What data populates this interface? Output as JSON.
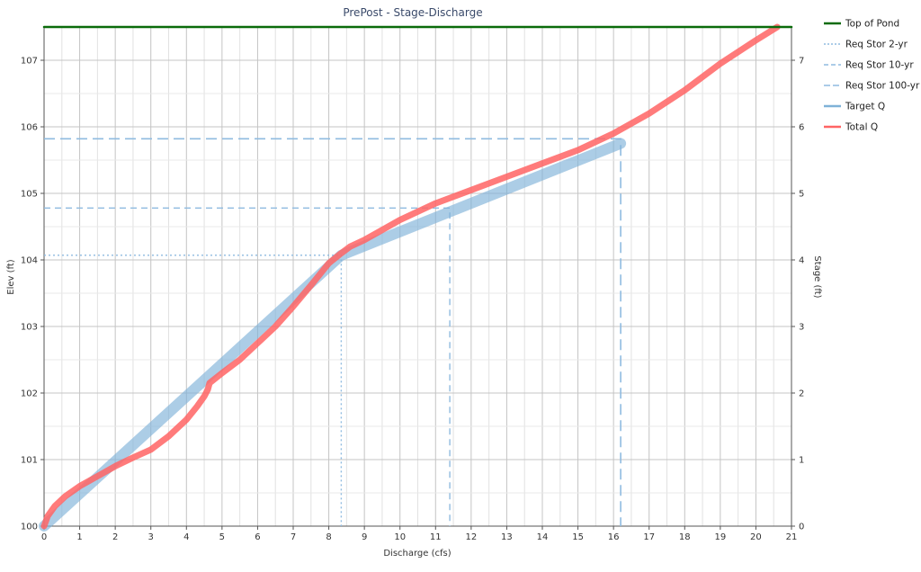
{
  "chart_data": {
    "type": "line",
    "title": "PrePost - Stage-Discharge",
    "xlabel": "Discharge (cfs)",
    "ylabel": "Elev (ft)",
    "y2label": "Stage (ft)",
    "xlim": [
      0,
      21
    ],
    "ylim": [
      100,
      107.5
    ],
    "y2lim": [
      0,
      7.5
    ],
    "x_ticks": [
      "0",
      "1",
      "2",
      "3",
      "4",
      "5",
      "6",
      "7",
      "8",
      "9",
      "10",
      "11",
      "12",
      "13",
      "14",
      "15",
      "16",
      "17",
      "18",
      "19",
      "20",
      "21"
    ],
    "y_ticks": [
      "100",
      "101",
      "102",
      "103",
      "104",
      "105",
      "106",
      "107"
    ],
    "y2_ticks": [
      "0",
      "1",
      "2",
      "3",
      "4",
      "5",
      "6",
      "7"
    ],
    "grid": true,
    "legend_position": "right",
    "top_of_pond": 107.5,
    "series": [
      {
        "name": "Top of Pond",
        "color": "#0a6b0a",
        "style": "solid",
        "x": [
          0,
          21
        ],
        "y": [
          107.5,
          107.5
        ]
      },
      {
        "name": "Req Stor 2-yr",
        "color": "#8fbbe0",
        "style": "dotted",
        "x": [
          0,
          8.35,
          8.35
        ],
        "y": [
          104.07,
          104.07,
          100
        ]
      },
      {
        "name": "Req Stor 10-yr",
        "color": "#8fbbe0",
        "style": "dashed",
        "x": [
          0,
          11.4,
          11.4
        ],
        "y": [
          104.78,
          104.78,
          100
        ]
      },
      {
        "name": "Req Stor 100-yr",
        "color": "#8fbbe0",
        "style": "longdash",
        "x": [
          0,
          16.2,
          16.2
        ],
        "y": [
          105.82,
          105.82,
          100
        ]
      },
      {
        "name": "Target Q",
        "color": "#7fb2d8",
        "style": "thick",
        "x": [
          0,
          8.35,
          16.2
        ],
        "y": [
          100,
          104.07,
          105.75
        ]
      },
      {
        "name": "Total Q",
        "color": "#ff6464",
        "style": "thick",
        "x": [
          0,
          0.1,
          0.3,
          0.6,
          1.0,
          1.5,
          2.0,
          2.5,
          3.0,
          3.5,
          4.0,
          4.3,
          4.5,
          4.6,
          4.65,
          5.0,
          5.5,
          6.0,
          6.5,
          7.0,
          7.5,
          8.0,
          8.3,
          8.6,
          9.0,
          10.0,
          11.0,
          12.0,
          13.0,
          14.0,
          15.0,
          16.0,
          17.0,
          18.0,
          19.0,
          20.0,
          20.6
        ],
        "y": [
          100,
          100.15,
          100.3,
          100.45,
          100.6,
          100.75,
          100.9,
          101.03,
          101.15,
          101.35,
          101.6,
          101.8,
          101.95,
          102.05,
          102.15,
          102.3,
          102.5,
          102.75,
          103.0,
          103.3,
          103.62,
          103.95,
          104.08,
          104.2,
          104.3,
          104.6,
          104.85,
          105.05,
          105.25,
          105.45,
          105.65,
          105.9,
          106.2,
          106.55,
          106.95,
          107.3,
          107.5
        ]
      }
    ]
  }
}
